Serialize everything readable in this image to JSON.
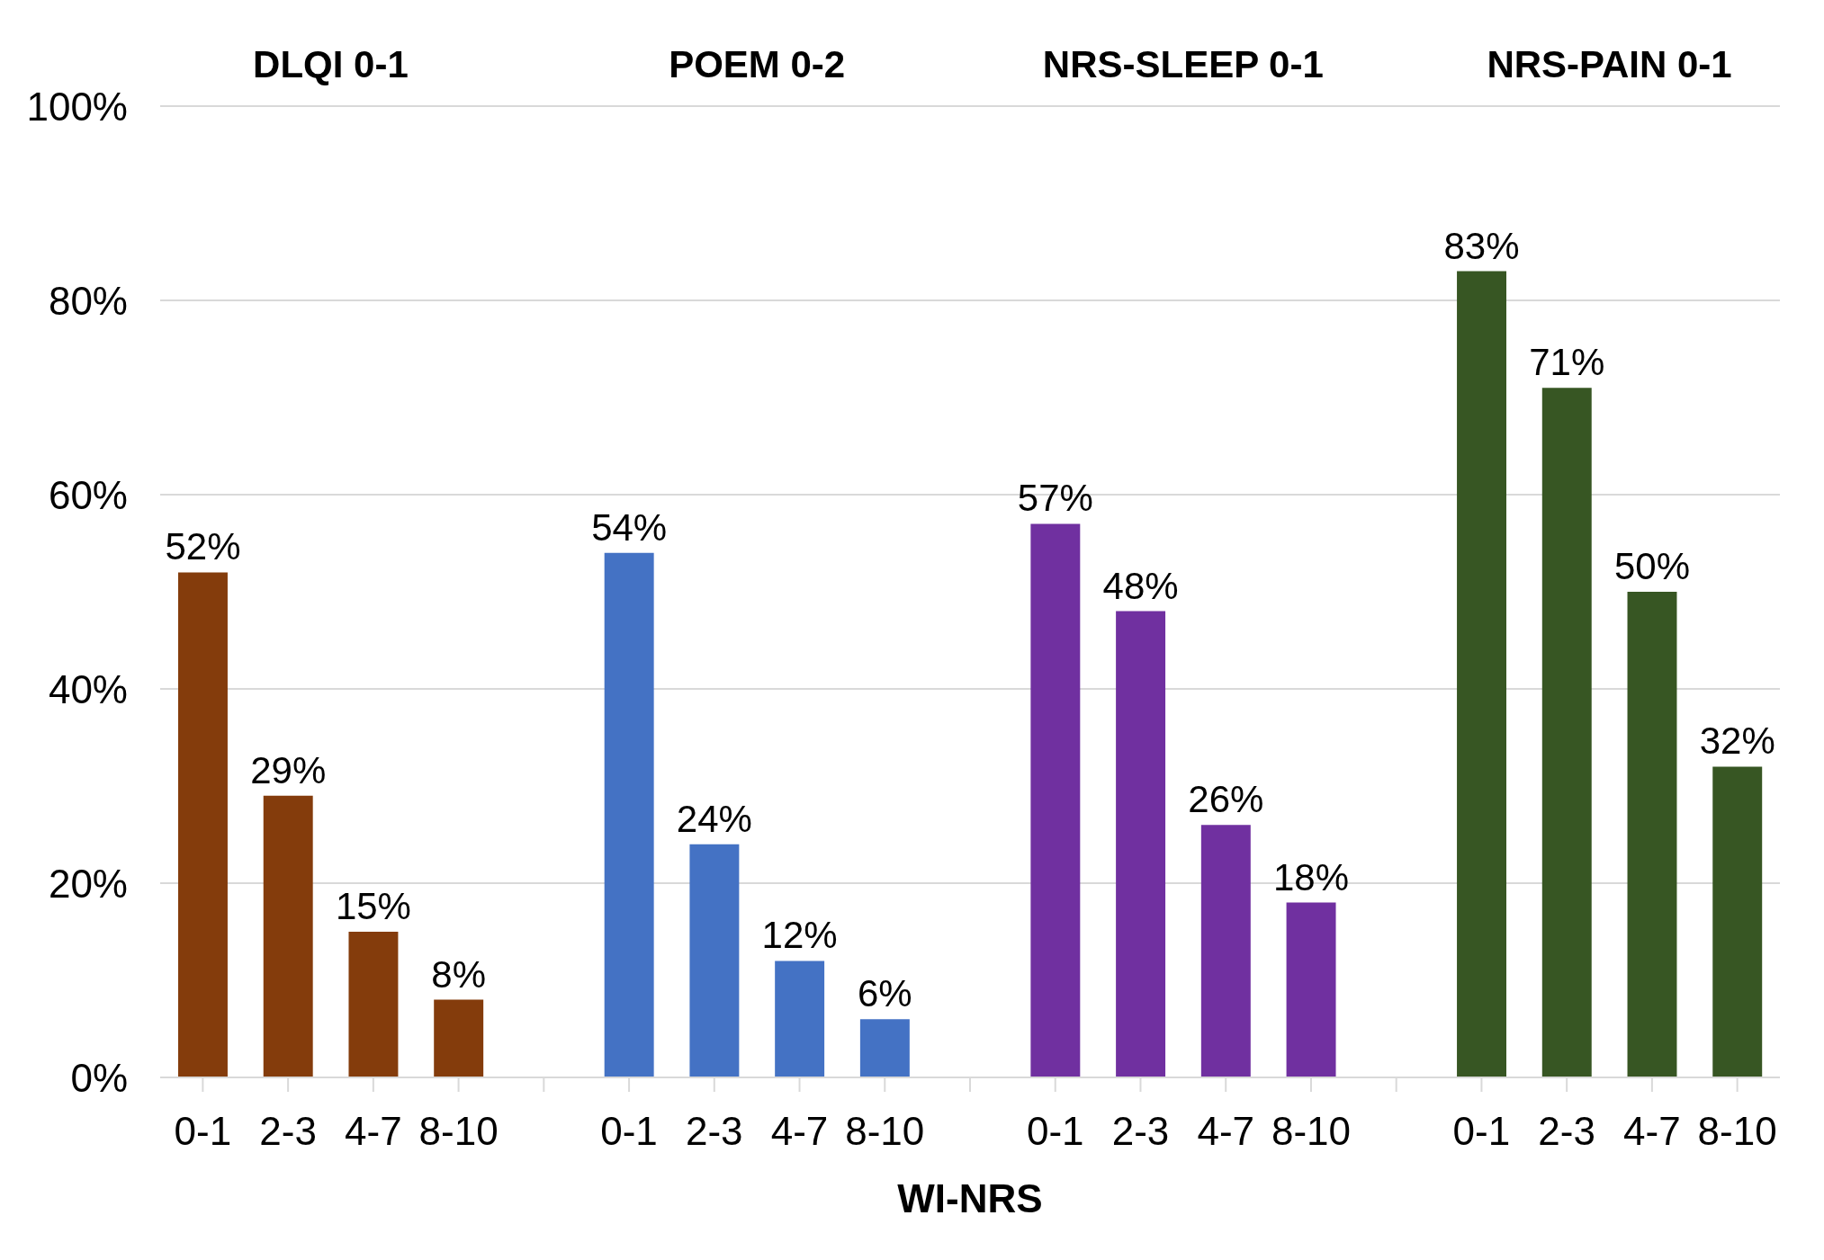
{
  "chart_data": {
    "type": "bar",
    "xlabel": "WI-NRS",
    "categories": [
      "0-1",
      "2-3",
      "4-7",
      "8-10",
      null,
      "0-1",
      "2-3",
      "4-7",
      "8-10",
      null,
      "0-1",
      "2-3",
      "4-7",
      "8-10",
      null,
      "0-1",
      "2-3",
      "4-7",
      "8-10"
    ],
    "series": [
      {
        "color": "#843c0c",
        "values": [
          52,
          29,
          15,
          8,
          null,
          null,
          null,
          null,
          null,
          null,
          null,
          null,
          null,
          null,
          null,
          null,
          null,
          null,
          null
        ],
        "value_labels": [
          "52%",
          "29%",
          "15%",
          "8%",
          null,
          null,
          null,
          null,
          null,
          null,
          null,
          null,
          null,
          null,
          null,
          null,
          null,
          null,
          null
        ]
      },
      {
        "color": "#4472c4",
        "values": [
          null,
          null,
          null,
          null,
          null,
          54,
          24,
          12,
          6,
          null,
          null,
          null,
          null,
          null,
          null,
          null,
          null,
          null,
          null
        ],
        "value_labels": [
          null,
          null,
          null,
          null,
          null,
          "54%",
          "24%",
          "12%",
          "6%",
          null,
          null,
          null,
          null,
          null,
          null,
          null,
          null,
          null,
          null
        ]
      },
      {
        "color": "#7030a0",
        "values": [
          null,
          null,
          null,
          null,
          null,
          null,
          null,
          null,
          null,
          null,
          57,
          48,
          26,
          18,
          null,
          null,
          null,
          null,
          null
        ],
        "value_labels": [
          null,
          null,
          null,
          null,
          null,
          null,
          null,
          null,
          null,
          null,
          "57%",
          "48%",
          "26%",
          "18%",
          null,
          null,
          null,
          null,
          null
        ]
      },
      {
        "color": "#375623",
        "values": [
          null,
          null,
          null,
          null,
          null,
          null,
          null,
          null,
          null,
          null,
          null,
          null,
          null,
          null,
          null,
          83,
          71,
          50,
          32
        ],
        "value_labels": [
          null,
          null,
          null,
          null,
          null,
          null,
          null,
          null,
          null,
          null,
          null,
          null,
          null,
          null,
          null,
          "83%",
          "71%",
          "50%",
          "32%"
        ]
      }
    ],
    "ylim": [
      0,
      100
    ],
    "yticks": [
      {
        "value": 0,
        "label": "0%"
      },
      {
        "value": 20,
        "label": "20%"
      },
      {
        "value": 40,
        "label": "40%"
      },
      {
        "value": 60,
        "label": "60%"
      },
      {
        "value": 80,
        "label": "80%"
      },
      {
        "value": 100,
        "label": "100%"
      }
    ],
    "grid": "y",
    "annotations": [
      "DLQI 0-1",
      "POEM 0-2",
      "NRS-SLEEP 0-1",
      "NRS-PAIN 0-1"
    ]
  }
}
